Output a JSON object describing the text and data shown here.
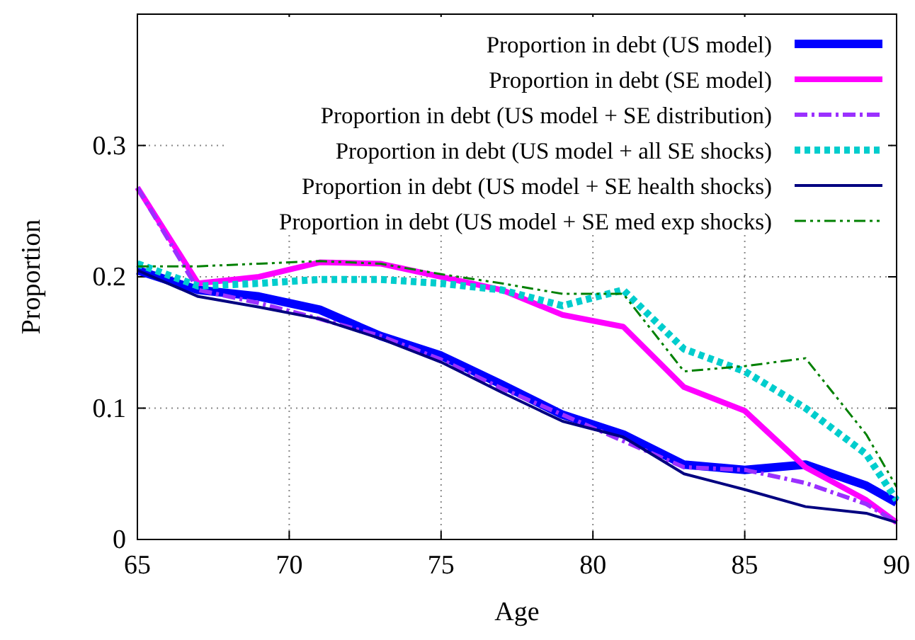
{
  "chart_data": {
    "type": "line",
    "xlabel": "Age",
    "ylabel": "Proportion",
    "x": [
      65,
      67,
      69,
      71,
      73,
      75,
      77,
      79,
      81,
      83,
      85,
      87,
      89,
      90
    ],
    "xlim": [
      65,
      90
    ],
    "xticks": [
      65,
      70,
      75,
      80,
      85,
      90
    ],
    "ylim": [
      0,
      0.4
    ],
    "yticks": [
      0,
      0.1,
      0.2,
      0.3
    ],
    "grid": true,
    "legend": "top right",
    "series": [
      {
        "name": "Proportion in debt (US model)",
        "color": "#0000ff",
        "line_style": "solid",
        "values": [
          0.205,
          0.19,
          0.185,
          0.175,
          0.155,
          0.14,
          0.118,
          0.095,
          0.08,
          0.057,
          0.053,
          0.057,
          0.041,
          0.028
        ]
      },
      {
        "name": "Proportion in debt (SE model)",
        "color": "#ff00ff",
        "line_style": "solid",
        "values": [
          0.268,
          0.195,
          0.2,
          0.211,
          0.21,
          0.2,
          0.19,
          0.171,
          0.162,
          0.116,
          0.098,
          0.055,
          0.03,
          0.013
        ]
      },
      {
        "name": "Proportion in debt (US model + SE distribution)",
        "color": "#9b30ff",
        "line_style": "dashed",
        "values": [
          0.268,
          0.19,
          0.18,
          0.168,
          0.155,
          0.137,
          0.115,
          0.095,
          0.075,
          0.055,
          0.053,
          0.043,
          0.027,
          0.013
        ]
      },
      {
        "name": "Proportion in debt (US model + all SE shocks)",
        "color": "#00cdcd",
        "line_style": "dotted",
        "values": [
          0.21,
          0.193,
          0.195,
          0.198,
          0.198,
          0.195,
          0.19,
          0.178,
          0.19,
          0.145,
          0.128,
          0.1,
          0.065,
          0.03
        ]
      },
      {
        "name": "Proportion in debt (US model + SE health shocks)",
        "color": "#000080",
        "line_style": "solid",
        "values": [
          0.205,
          0.185,
          0.177,
          0.168,
          0.153,
          0.135,
          0.112,
          0.09,
          0.078,
          0.05,
          0.038,
          0.025,
          0.02,
          0.013
        ]
      },
      {
        "name": "Proportion in debt (US model + SE med exp shocks)",
        "color": "#008000",
        "line_style": "dashed",
        "values": [
          0.208,
          0.208,
          0.21,
          0.212,
          0.21,
          0.202,
          0.195,
          0.187,
          0.187,
          0.128,
          0.132,
          0.138,
          0.08,
          0.04
        ]
      }
    ]
  }
}
